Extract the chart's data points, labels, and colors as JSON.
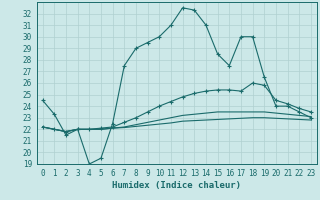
{
  "xlabel": "Humidex (Indice chaleur)",
  "x": [
    0,
    1,
    2,
    3,
    4,
    5,
    6,
    7,
    8,
    9,
    10,
    11,
    12,
    13,
    14,
    15,
    16,
    17,
    18,
    19,
    20,
    21,
    22,
    23
  ],
  "line1": [
    24.5,
    23.3,
    21.5,
    22.0,
    19.0,
    19.5,
    22.5,
    27.5,
    29.0,
    29.5,
    30.0,
    31.0,
    32.5,
    32.3,
    31.0,
    28.5,
    27.5,
    30.0,
    30.0,
    26.5,
    24.0,
    24.0,
    23.5,
    23.0
  ],
  "line2": [
    22.2,
    22.0,
    21.8,
    22.0,
    22.0,
    22.1,
    22.2,
    22.6,
    23.0,
    23.5,
    24.0,
    24.4,
    24.8,
    25.1,
    25.3,
    25.4,
    25.4,
    25.3,
    26.0,
    25.8,
    24.5,
    24.2,
    23.8,
    23.5
  ],
  "line3": [
    22.2,
    22.0,
    21.8,
    22.0,
    22.0,
    22.0,
    22.1,
    22.2,
    22.4,
    22.6,
    22.8,
    23.0,
    23.2,
    23.3,
    23.4,
    23.5,
    23.5,
    23.5,
    23.5,
    23.5,
    23.4,
    23.3,
    23.2,
    23.1
  ],
  "line4": [
    22.2,
    22.0,
    21.8,
    22.0,
    22.0,
    22.0,
    22.1,
    22.15,
    22.25,
    22.35,
    22.45,
    22.55,
    22.7,
    22.75,
    22.8,
    22.85,
    22.9,
    22.95,
    23.0,
    23.0,
    22.95,
    22.9,
    22.85,
    22.8
  ],
  "bg_color": "#cce8e8",
  "grid_color": "#b0d0d0",
  "line_color": "#1a6b6b",
  "ylim": [
    19,
    33
  ],
  "yticks": [
    19,
    20,
    21,
    22,
    23,
    24,
    25,
    26,
    27,
    28,
    29,
    30,
    31,
    32
  ],
  "xticks": [
    0,
    1,
    2,
    3,
    4,
    5,
    6,
    7,
    8,
    9,
    10,
    11,
    12,
    13,
    14,
    15,
    16,
    17,
    18,
    19,
    20,
    21,
    22,
    23
  ],
  "tick_fontsize": 5.5,
  "xlabel_fontsize": 6.5
}
